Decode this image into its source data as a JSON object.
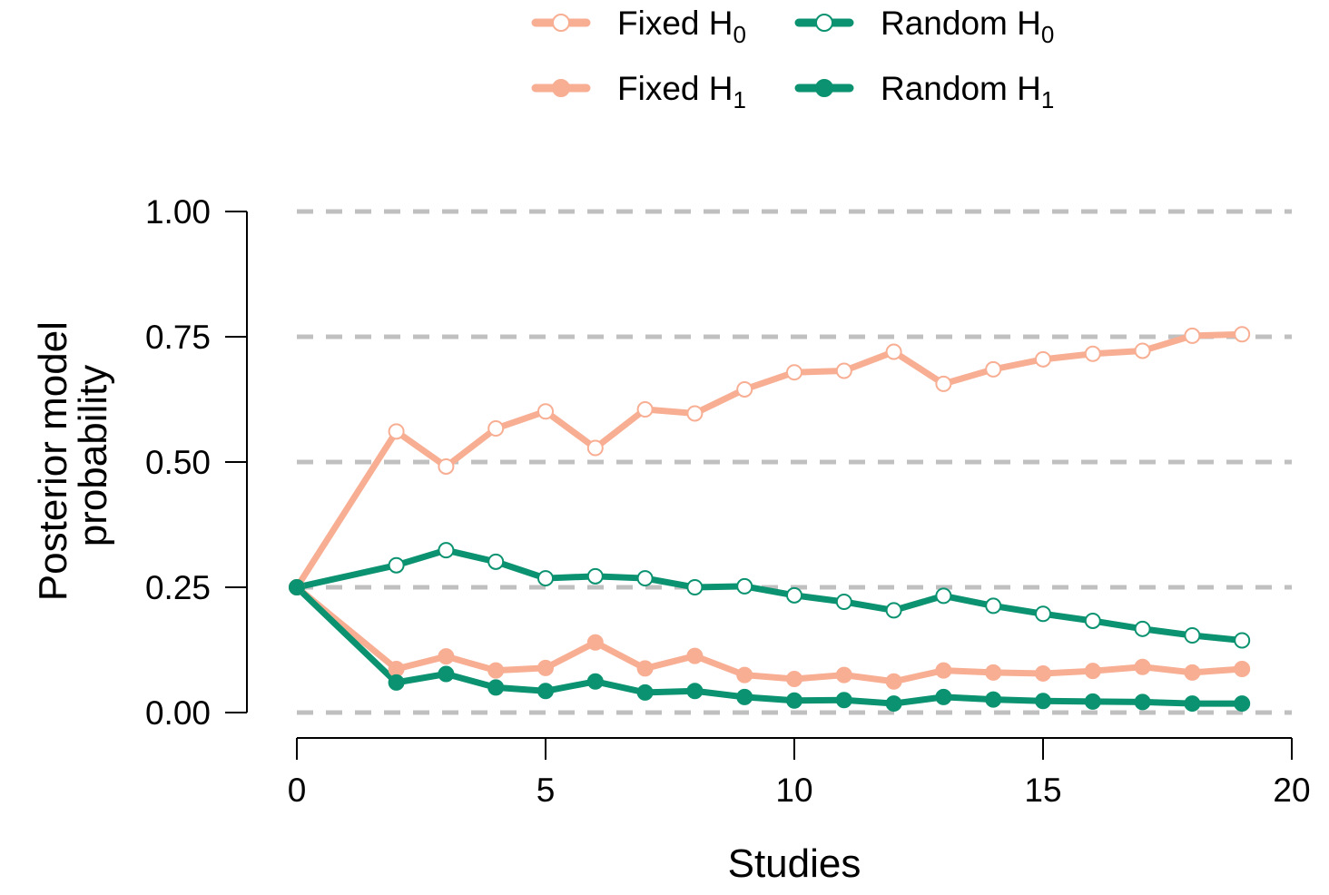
{
  "chart_data": {
    "type": "line",
    "xlabel": "Studies",
    "ylabel": [
      "Posterior model",
      "probability"
    ],
    "xlim": [
      0,
      20
    ],
    "ylim": [
      0,
      1
    ],
    "xticks": [
      "0",
      "5",
      "10",
      "15",
      "20"
    ],
    "xtick_values": [
      0,
      5,
      10,
      15,
      20
    ],
    "yticks": [
      "0.00",
      "0.25",
      "0.50",
      "0.75",
      "1.00"
    ],
    "ytick_values": [
      0,
      0.25,
      0.5,
      0.75,
      1.0
    ],
    "grid": "horizontal dashed",
    "legend_position": "top",
    "x": [
      0,
      2,
      3,
      4,
      5,
      6,
      7,
      8,
      9,
      10,
      11,
      12,
      13,
      14,
      15,
      16,
      17,
      18,
      19
    ],
    "series": [
      {
        "name": "Fixed H0",
        "label_main": "Fixed H",
        "label_sub": "0",
        "color": "#F8AE93",
        "marker": "open",
        "values": [
          0.25,
          0.561,
          0.491,
          0.567,
          0.601,
          0.528,
          0.605,
          0.597,
          0.645,
          0.679,
          0.682,
          0.72,
          0.656,
          0.685,
          0.705,
          0.716,
          0.722,
          0.752,
          0.755
        ]
      },
      {
        "name": "Fixed H1",
        "label_main": "Fixed H",
        "label_sub": "1",
        "color": "#F8AE93",
        "marker": "filled",
        "values": [
          0.25,
          0.087,
          0.112,
          0.084,
          0.089,
          0.14,
          0.088,
          0.113,
          0.075,
          0.067,
          0.075,
          0.062,
          0.084,
          0.08,
          0.078,
          0.083,
          0.091,
          0.08,
          0.087
        ]
      },
      {
        "name": "Random H0",
        "label_main": "Random H",
        "label_sub": "0",
        "color": "#0B9270",
        "marker": "open",
        "values": [
          0.25,
          0.294,
          0.324,
          0.301,
          0.268,
          0.272,
          0.268,
          0.25,
          0.252,
          0.234,
          0.221,
          0.204,
          0.233,
          0.213,
          0.197,
          0.183,
          0.167,
          0.154,
          0.144
        ]
      },
      {
        "name": "Random H1",
        "label_main": "Random H",
        "label_sub": "1",
        "color": "#0B9270",
        "marker": "filled",
        "values": [
          0.25,
          0.06,
          0.077,
          0.05,
          0.043,
          0.062,
          0.04,
          0.043,
          0.031,
          0.024,
          0.025,
          0.018,
          0.031,
          0.026,
          0.023,
          0.022,
          0.021,
          0.018,
          0.018
        ]
      }
    ]
  }
}
